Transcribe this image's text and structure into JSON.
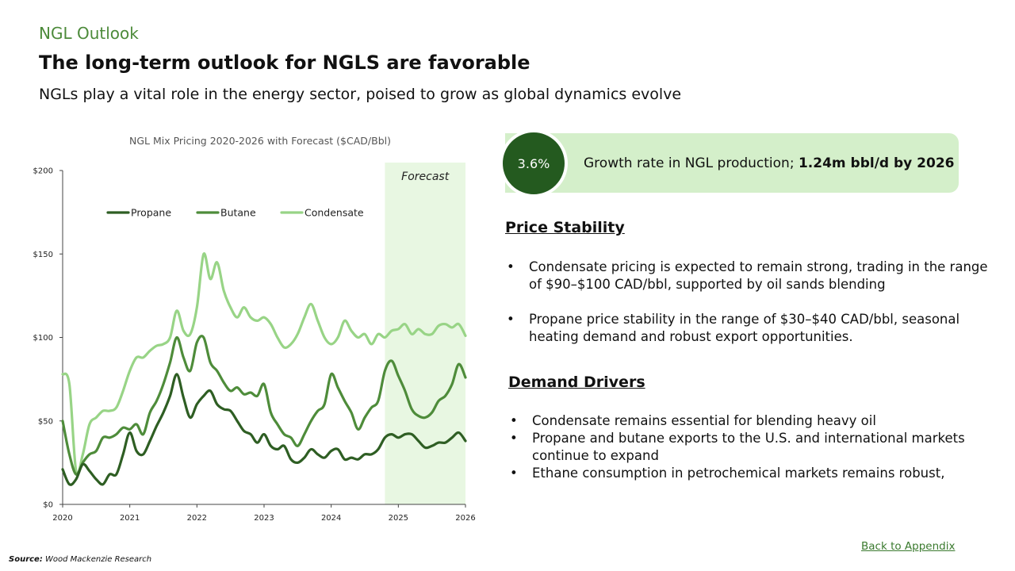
{
  "header": {
    "section": "NGL Outlook",
    "title": "The long-term outlook for NGLS are favorable",
    "subtitle": "NGLs play a vital role in the energy sector, poised to grow as global dynamics evolve"
  },
  "kpi": {
    "value": "3.6%",
    "text": "Growth rate in NGL production; ",
    "bold": "1.24m bbl/d by 2026"
  },
  "price_stability": {
    "heading": "Price Stability",
    "bullets": [
      "Condensate pricing is expected to remain strong, trading in the range of $90–$100 CAD/bbl, supported by oil sands blending",
      "Propane price stability in the range of $30–$40 CAD/bbl, seasonal heating demand and robust export opportunities."
    ]
  },
  "demand_drivers": {
    "heading": "Demand Drivers",
    "bullets": [
      "Condensate remains essential for blending heavy oil",
      "Propane and butane exports to the U.S. and international markets continue to expand",
      "Ethane consumption in petrochemical markets remains robust,"
    ]
  },
  "footer": {
    "back_link": "Back to Appendix",
    "source_label": "Source:",
    "source_text": " Wood Mackenzie Research"
  },
  "colors": {
    "propane": "#2e5e23",
    "butane": "#4e8c3a",
    "condensate": "#98d486",
    "forecast_band": "#e8f7e2",
    "accent": "#4c8a3a"
  },
  "chart_data": {
    "type": "line",
    "title": "NGL Mix Pricing 2020-2026 with Forecast ($CAD/Bbl)",
    "xlim": [
      2020,
      2026
    ],
    "ylim": [
      0,
      200
    ],
    "x_ticks": [
      2020,
      2021,
      2022,
      2023,
      2024,
      2025,
      2026
    ],
    "x_tick_labels": [
      "2020",
      "2021",
      "2022",
      "2023",
      "2024",
      "2025",
      "2026"
    ],
    "y_ticks": [
      0,
      50,
      100,
      150,
      200
    ],
    "y_tick_labels": [
      "$0",
      "$50",
      "$100",
      "$150",
      "$200"
    ],
    "forecast_start": 2024.8,
    "forecast_label": "Forecast",
    "legend_position": "top",
    "series": [
      {
        "name": "Propane",
        "color": "#2e5e23",
        "x": [
          2020.0,
          2020.1,
          2020.2,
          2020.3,
          2020.4,
          2020.5,
          2020.6,
          2020.7,
          2020.8,
          2020.9,
          2021.0,
          2021.1,
          2021.2,
          2021.3,
          2021.4,
          2021.5,
          2021.6,
          2021.7,
          2021.8,
          2021.9,
          2022.0,
          2022.1,
          2022.2,
          2022.3,
          2022.4,
          2022.5,
          2022.6,
          2022.7,
          2022.8,
          2022.9,
          2023.0,
          2023.1,
          2023.2,
          2023.3,
          2023.4,
          2023.5,
          2023.6,
          2023.7,
          2023.8,
          2023.9,
          2024.0,
          2024.1,
          2024.2,
          2024.3,
          2024.4,
          2024.5,
          2024.6,
          2024.7,
          2024.8,
          2024.9,
          2025.0,
          2025.1,
          2025.2,
          2025.3,
          2025.4,
          2025.5,
          2025.6,
          2025.7,
          2025.8,
          2025.9,
          2026.0
        ],
        "values": [
          21,
          12,
          15,
          24,
          20,
          15,
          12,
          18,
          18,
          30,
          43,
          32,
          30,
          38,
          47,
          55,
          65,
          78,
          64,
          52,
          60,
          65,
          68,
          60,
          57,
          56,
          50,
          44,
          42,
          37,
          42,
          35,
          33,
          35,
          27,
          25,
          28,
          33,
          30,
          28,
          32,
          33,
          27,
          28,
          27,
          30,
          30,
          33,
          40,
          42,
          40,
          42,
          42,
          38,
          34,
          35,
          37,
          37,
          40,
          43,
          38
        ]
      },
      {
        "name": "Butane",
        "color": "#4e8c3a",
        "x": [
          2020.0,
          2020.1,
          2020.2,
          2020.3,
          2020.4,
          2020.5,
          2020.6,
          2020.7,
          2020.8,
          2020.9,
          2021.0,
          2021.1,
          2021.2,
          2021.3,
          2021.4,
          2021.5,
          2021.6,
          2021.7,
          2021.8,
          2021.9,
          2022.0,
          2022.1,
          2022.2,
          2022.3,
          2022.4,
          2022.5,
          2022.6,
          2022.7,
          2022.8,
          2022.9,
          2023.0,
          2023.1,
          2023.2,
          2023.3,
          2023.4,
          2023.5,
          2023.6,
          2023.7,
          2023.8,
          2023.9,
          2024.0,
          2024.1,
          2024.2,
          2024.3,
          2024.4,
          2024.5,
          2024.6,
          2024.7,
          2024.8,
          2024.9,
          2025.0,
          2025.1,
          2025.2,
          2025.3,
          2025.4,
          2025.5,
          2025.6,
          2025.7,
          2025.8,
          2025.9,
          2026.0
        ],
        "values": [
          50,
          30,
          18,
          25,
          30,
          32,
          40,
          40,
          42,
          46,
          45,
          48,
          42,
          55,
          62,
          72,
          85,
          100,
          88,
          80,
          97,
          100,
          85,
          80,
          73,
          68,
          70,
          66,
          67,
          65,
          72,
          55,
          48,
          42,
          40,
          35,
          42,
          50,
          56,
          60,
          78,
          70,
          62,
          55,
          45,
          52,
          58,
          62,
          80,
          86,
          77,
          68,
          57,
          53,
          52,
          55,
          62,
          65,
          72,
          84,
          76
        ]
      },
      {
        "name": "Condensate",
        "color": "#98d486",
        "x": [
          2020.0,
          2020.1,
          2020.2,
          2020.3,
          2020.4,
          2020.5,
          2020.6,
          2020.7,
          2020.8,
          2020.9,
          2021.0,
          2021.1,
          2021.2,
          2021.3,
          2021.4,
          2021.5,
          2021.6,
          2021.7,
          2021.8,
          2021.9,
          2022.0,
          2022.1,
          2022.2,
          2022.3,
          2022.4,
          2022.5,
          2022.6,
          2022.7,
          2022.8,
          2022.9,
          2023.0,
          2023.1,
          2023.2,
          2023.3,
          2023.4,
          2023.5,
          2023.6,
          2023.7,
          2023.8,
          2023.9,
          2024.0,
          2024.1,
          2024.2,
          2024.3,
          2024.4,
          2024.5,
          2024.6,
          2024.7,
          2024.8,
          2024.9,
          2025.0,
          2025.1,
          2025.2,
          2025.3,
          2025.4,
          2025.5,
          2025.6,
          2025.7,
          2025.8,
          2025.9,
          2026.0
        ],
        "values": [
          78,
          72,
          20,
          30,
          48,
          52,
          56,
          56,
          58,
          68,
          80,
          88,
          88,
          92,
          95,
          96,
          100,
          116,
          104,
          102,
          118,
          150,
          135,
          145,
          128,
          118,
          112,
          118,
          112,
          110,
          112,
          108,
          100,
          94,
          96,
          102,
          112,
          120,
          110,
          100,
          96,
          100,
          110,
          104,
          100,
          102,
          96,
          102,
          100,
          104,
          105,
          108,
          102,
          105,
          102,
          102,
          107,
          108,
          106,
          108,
          101
        ]
      }
    ]
  }
}
